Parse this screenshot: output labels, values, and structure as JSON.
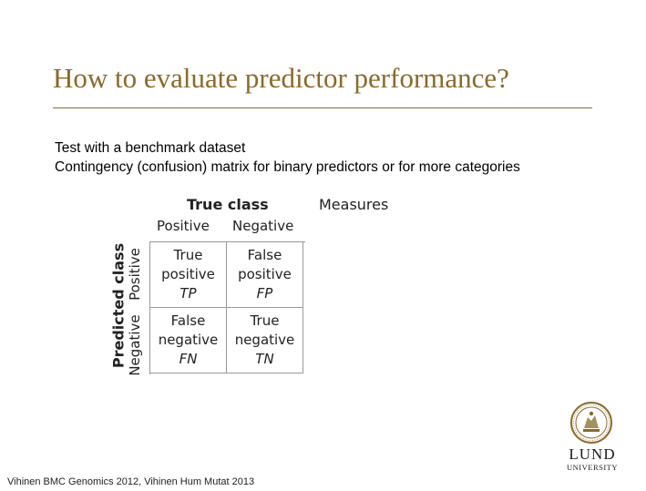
{
  "slide": {
    "title": "How to evaluate predictor performance?",
    "lines": [
      "Test with a benchmark dataset",
      "Contingency (confusion) matrix for binary predictors or for more categories"
    ],
    "citation": "Vihinen BMC Genomics 2012, Vihinen Hum Mutat 2013"
  },
  "matrix": {
    "true_class_label": "True class",
    "measures_label": "Measures",
    "predicted_class_label": "Predicted class",
    "col_positive": "Positive",
    "col_negative": "Negative",
    "row_positive": "Positive",
    "row_negative": "Negative",
    "cells": {
      "tp": {
        "l1": "True",
        "l2": "positive",
        "abbr": "TP"
      },
      "fp": {
        "l1": "False",
        "l2": "positive",
        "abbr": "FP"
      },
      "fn": {
        "l1": "False",
        "l2": "negative",
        "abbr": "FN"
      },
      "tn": {
        "l1": "True",
        "l2": "negative",
        "abbr": "TN"
      }
    }
  },
  "logo": {
    "name": "LUND",
    "sub": "UNIVERSITY",
    "icon": "lund-university-seal-icon",
    "color": "#8a6a2a"
  },
  "theme": {
    "title_color": "#8a6a2a",
    "rule_color": "#8a6a2a"
  }
}
